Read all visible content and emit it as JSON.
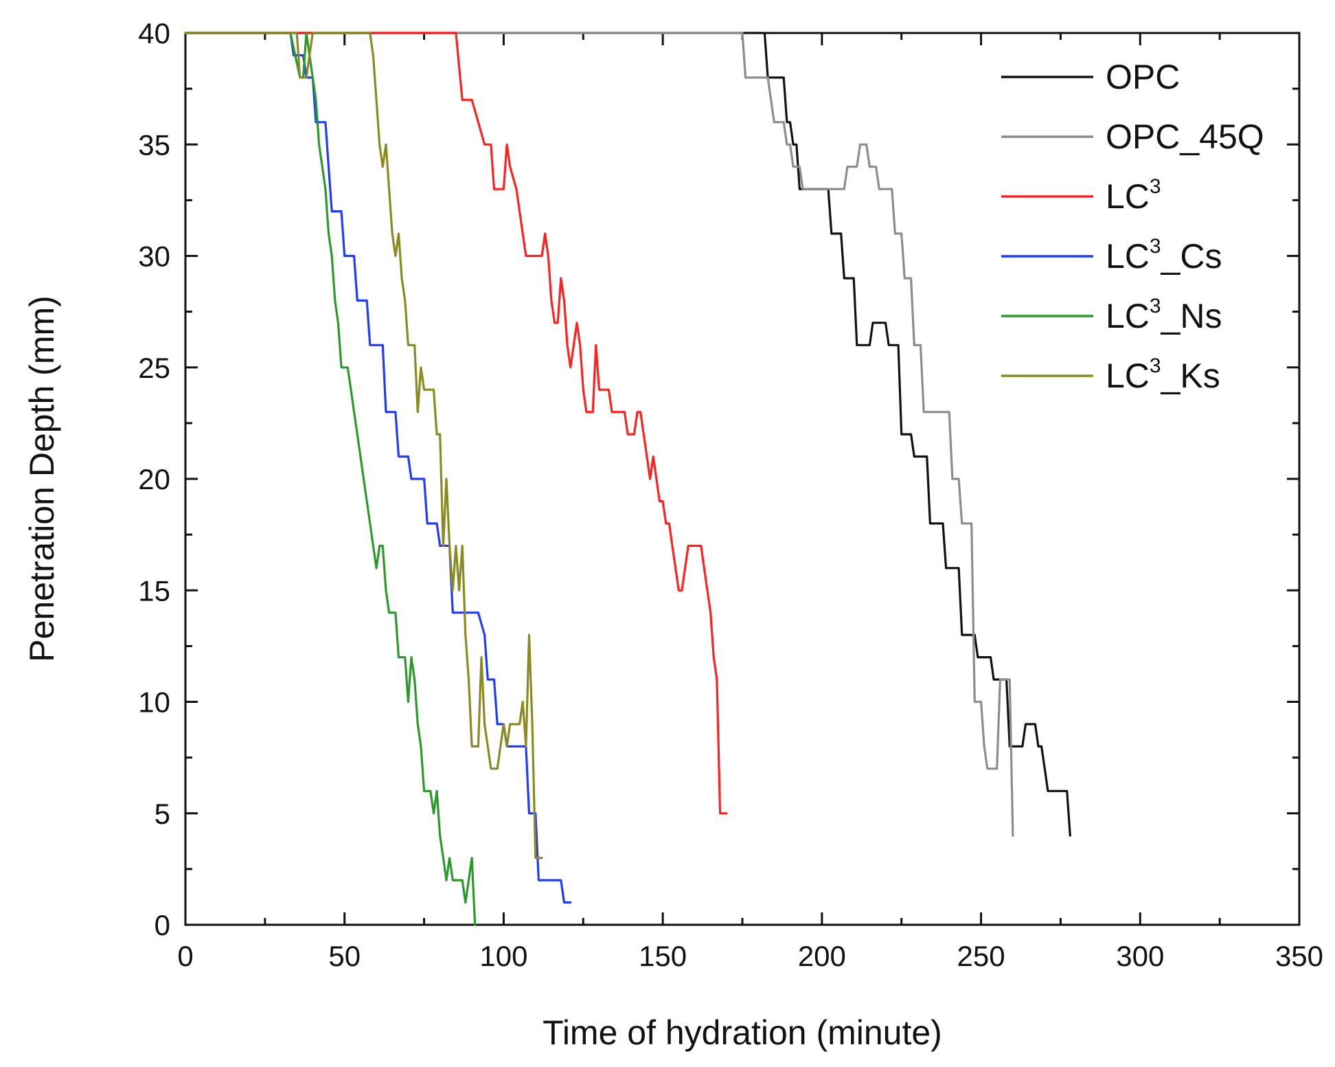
{
  "chart_data": {
    "type": "line",
    "title": "",
    "xlabel": "Time of hydration (minute)",
    "ylabel": "Penetration Depth (mm)",
    "xlim": [
      0,
      350
    ],
    "ylim": [
      0,
      40
    ],
    "x_ticks": [
      0,
      50,
      100,
      150,
      200,
      250,
      300,
      350
    ],
    "y_ticks": [
      0,
      5,
      10,
      15,
      20,
      25,
      30,
      35,
      40
    ],
    "x_tick_labels": [
      "0",
      "50",
      "100",
      "150",
      "200",
      "250",
      "300",
      "350"
    ],
    "y_tick_labels": [
      "0",
      "5",
      "10",
      "15",
      "20",
      "25",
      "30",
      "35",
      "40"
    ],
    "grid": false,
    "legend_position": "top-right",
    "series": [
      {
        "name": "OPC",
        "label_base": "OPC",
        "label_sup": "",
        "label_suffix": "",
        "color": "#111111",
        "points": [
          [
            0,
            40
          ],
          [
            182,
            40
          ],
          [
            183,
            38
          ],
          [
            186,
            38
          ],
          [
            187,
            38
          ],
          [
            188,
            38
          ],
          [
            189,
            36
          ],
          [
            190,
            36
          ],
          [
            191,
            35
          ],
          [
            192,
            35
          ],
          [
            193,
            33
          ],
          [
            198,
            33
          ],
          [
            199,
            33
          ],
          [
            202,
            33
          ],
          [
            203,
            31
          ],
          [
            206,
            31
          ],
          [
            207,
            29
          ],
          [
            209,
            29
          ],
          [
            210,
            29
          ],
          [
            211,
            26
          ],
          [
            214,
            26
          ],
          [
            215,
            26
          ],
          [
            216,
            27
          ],
          [
            220,
            27
          ],
          [
            221,
            26
          ],
          [
            224,
            26
          ],
          [
            225,
            22
          ],
          [
            228,
            22
          ],
          [
            229,
            21
          ],
          [
            232,
            21
          ],
          [
            233,
            21
          ],
          [
            234,
            18
          ],
          [
            237,
            18
          ],
          [
            238,
            18
          ],
          [
            239,
            16
          ],
          [
            242,
            16
          ],
          [
            243,
            16
          ],
          [
            244,
            13
          ],
          [
            247,
            13
          ],
          [
            248,
            13
          ],
          [
            249,
            12
          ],
          [
            252,
            12
          ],
          [
            253,
            12
          ],
          [
            254,
            11
          ],
          [
            257,
            11
          ],
          [
            258,
            11
          ],
          [
            259,
            8
          ],
          [
            262,
            8
          ],
          [
            263,
            8
          ],
          [
            264,
            9
          ],
          [
            266,
            9
          ],
          [
            267,
            9
          ],
          [
            268,
            8
          ],
          [
            269,
            8
          ],
          [
            270,
            7
          ],
          [
            271,
            6
          ],
          [
            276,
            6
          ],
          [
            277,
            6
          ],
          [
            278,
            4
          ]
        ]
      },
      {
        "name": "OPC_45Q",
        "label_base": "OPC_45Q",
        "label_sup": "",
        "label_suffix": "",
        "color": "#8c8c8c",
        "points": [
          [
            0,
            40
          ],
          [
            175,
            40
          ],
          [
            176,
            38
          ],
          [
            179,
            38
          ],
          [
            181,
            38
          ],
          [
            183,
            38
          ],
          [
            185,
            36
          ],
          [
            188,
            36
          ],
          [
            189,
            35
          ],
          [
            190,
            35
          ],
          [
            191,
            34
          ],
          [
            193,
            34
          ],
          [
            194,
            33
          ],
          [
            197,
            33
          ],
          [
            198,
            33
          ],
          [
            207,
            33
          ],
          [
            208,
            34
          ],
          [
            211,
            34
          ],
          [
            212,
            35
          ],
          [
            214,
            35
          ],
          [
            215,
            34
          ],
          [
            217,
            34
          ],
          [
            218,
            33
          ],
          [
            221,
            33
          ],
          [
            222,
            33
          ],
          [
            223,
            31
          ],
          [
            225,
            31
          ],
          [
            226,
            29
          ],
          [
            228,
            29
          ],
          [
            229,
            26
          ],
          [
            231,
            26
          ],
          [
            232,
            23
          ],
          [
            236,
            23
          ],
          [
            237,
            23
          ],
          [
            240,
            23
          ],
          [
            241,
            20
          ],
          [
            242,
            20
          ],
          [
            243,
            20
          ],
          [
            244,
            18
          ],
          [
            246,
            18
          ],
          [
            247,
            18
          ],
          [
            248,
            10
          ],
          [
            250,
            10
          ],
          [
            251,
            8
          ],
          [
            252,
            7
          ],
          [
            255,
            7
          ],
          [
            256,
            11
          ],
          [
            258,
            11
          ],
          [
            259,
            11
          ],
          [
            260,
            4
          ]
        ]
      },
      {
        "name": "LC3",
        "label_base": "LC",
        "label_sup": "3",
        "label_suffix": "",
        "color": "#ff2020",
        "points": [
          [
            0,
            40
          ],
          [
            85,
            40
          ],
          [
            87,
            37
          ],
          [
            90,
            37
          ],
          [
            92,
            36
          ],
          [
            94,
            35
          ],
          [
            96,
            35
          ],
          [
            97,
            33
          ],
          [
            100,
            33
          ],
          [
            101,
            35
          ],
          [
            102,
            34
          ],
          [
            104,
            33
          ],
          [
            105,
            32
          ],
          [
            106,
            31
          ],
          [
            107,
            30
          ],
          [
            112,
            30
          ],
          [
            113,
            31
          ],
          [
            114,
            30
          ],
          [
            115,
            28
          ],
          [
            116,
            27
          ],
          [
            117,
            27
          ],
          [
            118,
            29
          ],
          [
            119,
            28
          ],
          [
            120,
            26
          ],
          [
            121,
            25
          ],
          [
            122,
            26
          ],
          [
            123,
            27
          ],
          [
            124,
            26
          ],
          [
            125,
            24
          ],
          [
            126,
            23
          ],
          [
            128,
            23
          ],
          [
            129,
            26
          ],
          [
            130,
            24
          ],
          [
            132,
            24
          ],
          [
            133,
            24
          ],
          [
            134,
            23
          ],
          [
            138,
            23
          ],
          [
            139,
            22
          ],
          [
            141,
            22
          ],
          [
            142,
            23
          ],
          [
            143,
            23
          ],
          [
            144,
            22
          ],
          [
            145,
            21
          ],
          [
            146,
            20
          ],
          [
            147,
            21
          ],
          [
            148,
            20
          ],
          [
            149,
            19
          ],
          [
            150,
            19
          ],
          [
            151,
            18
          ],
          [
            152,
            18
          ],
          [
            153,
            17
          ],
          [
            154,
            16
          ],
          [
            155,
            15
          ],
          [
            156,
            15
          ],
          [
            157,
            16
          ],
          [
            158,
            17
          ],
          [
            162,
            17
          ],
          [
            163,
            16
          ],
          [
            164,
            15
          ],
          [
            165,
            14
          ],
          [
            166,
            12
          ],
          [
            167,
            11
          ],
          [
            168,
            5
          ],
          [
            170,
            5
          ]
        ]
      },
      {
        "name": "LC3_Cs",
        "label_base": "LC",
        "label_sup": "3",
        "label_suffix": "_Cs",
        "color": "#1f3bff",
        "points": [
          [
            0,
            40
          ],
          [
            33,
            40
          ],
          [
            34,
            39
          ],
          [
            37,
            39
          ],
          [
            38,
            38
          ],
          [
            40,
            38
          ],
          [
            41,
            36
          ],
          [
            44,
            36
          ],
          [
            45,
            34
          ],
          [
            46,
            32
          ],
          [
            49,
            32
          ],
          [
            50,
            30
          ],
          [
            53,
            30
          ],
          [
            54,
            28
          ],
          [
            57,
            28
          ],
          [
            58,
            26
          ],
          [
            62,
            26
          ],
          [
            63,
            23
          ],
          [
            66,
            23
          ],
          [
            67,
            21
          ],
          [
            70,
            21
          ],
          [
            71,
            20
          ],
          [
            75,
            20
          ],
          [
            76,
            18
          ],
          [
            79,
            18
          ],
          [
            80,
            17
          ],
          [
            83,
            17
          ],
          [
            84,
            14
          ],
          [
            92,
            14
          ],
          [
            94,
            13
          ],
          [
            95,
            11
          ],
          [
            97,
            11
          ],
          [
            98,
            9
          ],
          [
            100,
            9
          ],
          [
            101,
            8
          ],
          [
            107,
            8
          ],
          [
            108,
            5
          ],
          [
            110,
            5
          ],
          [
            111,
            2
          ],
          [
            118,
            2
          ],
          [
            119,
            1
          ],
          [
            121,
            1
          ]
        ]
      },
      {
        "name": "LC3_Ns",
        "label_base": "LC",
        "label_sup": "3",
        "label_suffix": "_Ns",
        "color": "#2a9a2a",
        "points": [
          [
            0,
            40
          ],
          [
            33,
            40
          ],
          [
            36,
            38
          ],
          [
            37,
            38
          ],
          [
            38,
            40
          ],
          [
            39,
            39
          ],
          [
            40,
            38
          ],
          [
            41,
            37
          ],
          [
            42,
            35
          ],
          [
            43,
            34
          ],
          [
            44,
            33
          ],
          [
            45,
            31
          ],
          [
            46,
            30
          ],
          [
            47,
            28
          ],
          [
            48,
            27
          ],
          [
            49,
            25
          ],
          [
            51,
            25
          ],
          [
            52,
            24
          ],
          [
            53,
            23
          ],
          [
            54,
            22
          ],
          [
            55,
            21
          ],
          [
            56,
            20
          ],
          [
            57,
            19
          ],
          [
            58,
            18
          ],
          [
            59,
            17
          ],
          [
            60,
            16
          ],
          [
            61,
            17
          ],
          [
            62,
            17
          ],
          [
            63,
            15
          ],
          [
            64,
            14
          ],
          [
            66,
            14
          ],
          [
            67,
            12
          ],
          [
            69,
            12
          ],
          [
            70,
            10
          ],
          [
            71,
            12
          ],
          [
            72,
            11
          ],
          [
            73,
            9
          ],
          [
            74,
            8
          ],
          [
            75,
            6
          ],
          [
            77,
            6
          ],
          [
            78,
            5
          ],
          [
            79,
            6
          ],
          [
            80,
            4
          ],
          [
            81,
            3
          ],
          [
            82,
            2
          ],
          [
            83,
            3
          ],
          [
            84,
            2
          ],
          [
            87,
            2
          ],
          [
            88,
            1
          ],
          [
            89,
            2
          ],
          [
            90,
            3
          ],
          [
            91,
            0
          ]
        ]
      },
      {
        "name": "LC3_Ks",
        "label_base": "LC",
        "label_sup": "3",
        "label_suffix": "_Ks",
        "color": "#8a8a20",
        "points": [
          [
            0,
            40
          ],
          [
            35,
            40
          ],
          [
            36,
            38
          ],
          [
            38,
            38
          ],
          [
            39,
            39
          ],
          [
            40,
            40
          ],
          [
            58,
            40
          ],
          [
            59,
            39
          ],
          [
            60,
            37
          ],
          [
            61,
            35
          ],
          [
            62,
            34
          ],
          [
            63,
            35
          ],
          [
            64,
            33
          ],
          [
            65,
            31
          ],
          [
            66,
            30
          ],
          [
            67,
            31
          ],
          [
            68,
            29
          ],
          [
            69,
            28
          ],
          [
            70,
            26
          ],
          [
            72,
            26
          ],
          [
            73,
            23
          ],
          [
            74,
            25
          ],
          [
            75,
            24
          ],
          [
            78,
            24
          ],
          [
            79,
            22
          ],
          [
            80,
            22
          ],
          [
            81,
            17
          ],
          [
            82,
            20
          ],
          [
            83,
            17
          ],
          [
            84,
            15
          ],
          [
            85,
            17
          ],
          [
            86,
            15
          ],
          [
            87,
            17
          ],
          [
            88,
            13
          ],
          [
            89,
            11
          ],
          [
            90,
            8
          ],
          [
            92,
            8
          ],
          [
            93,
            12
          ],
          [
            94,
            9
          ],
          [
            95,
            8
          ],
          [
            96,
            7
          ],
          [
            98,
            7
          ],
          [
            99,
            8
          ],
          [
            100,
            9
          ],
          [
            101,
            8
          ],
          [
            102,
            9
          ],
          [
            105,
            9
          ],
          [
            106,
            10
          ],
          [
            107,
            8
          ],
          [
            108,
            13
          ],
          [
            109,
            9
          ],
          [
            110,
            3
          ],
          [
            112,
            3
          ]
        ]
      }
    ]
  }
}
